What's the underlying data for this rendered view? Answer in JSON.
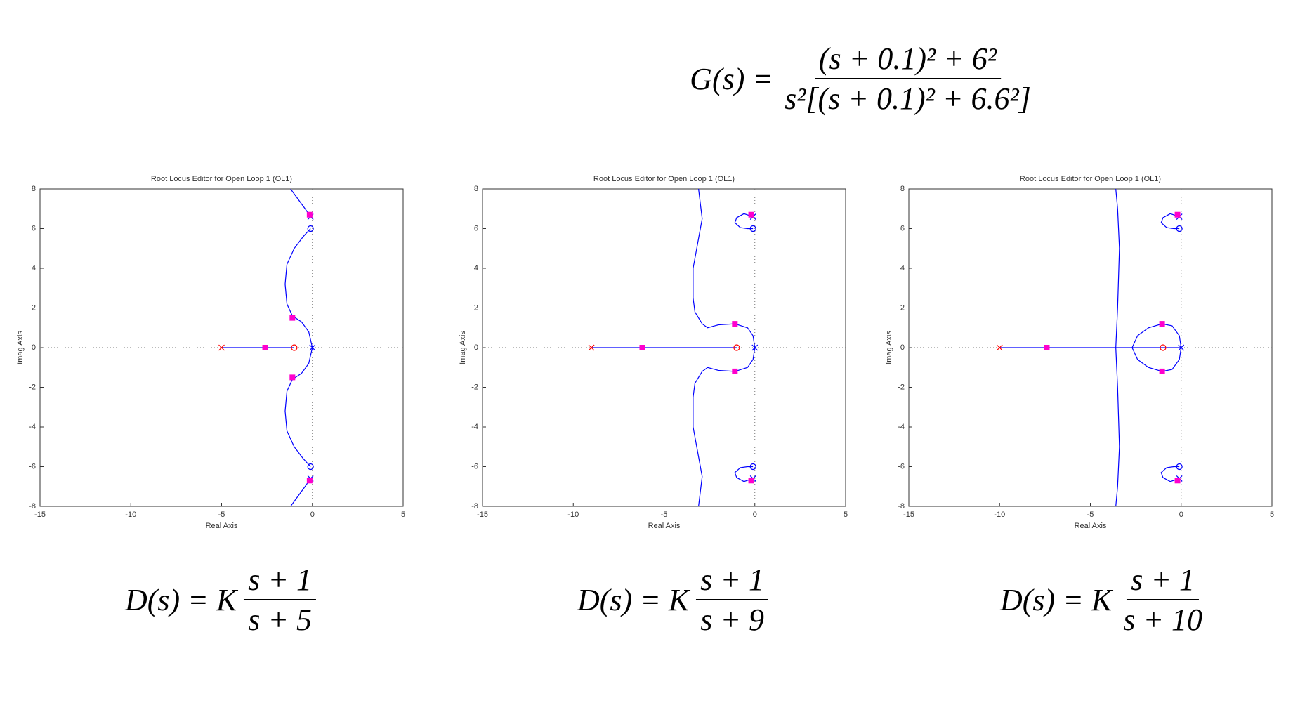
{
  "plant": {
    "lhs": "G(s) =",
    "numerator": "(s + 0.1)² + 6²",
    "denominator": "s²[(s + 0.1)² + 6.6²]"
  },
  "compensators": [
    {
      "lhs": "D(s) = K",
      "numerator": "s + 1",
      "denominator": "s + 5"
    },
    {
      "lhs": "D(s) = K",
      "numerator": "s + 1",
      "denominator": "s + 9"
    },
    {
      "lhs": "D(s) = K",
      "numerator": "s + 1",
      "denominator": "s + 10"
    }
  ],
  "chart_data": [
    {
      "type": "root-locus",
      "title": "Root Locus Editor for Open Loop 1 (OL1)",
      "xlabel": "Real Axis",
      "ylabel": "Imag Axis",
      "xlim": [
        -15,
        5
      ],
      "ylim": [
        -8,
        8
      ],
      "xticks": [
        -15,
        -10,
        -5,
        0,
        5
      ],
      "yticks": [
        -8,
        -6,
        -4,
        -2,
        0,
        2,
        4,
        6,
        8
      ],
      "origin_lines": true,
      "locus_color": "#0000ff",
      "plant_color": "#0000ff",
      "compensator_color": "#ff0000",
      "closed_loop_color": "#ff00cc",
      "branches": [
        {
          "x": [
            -5,
            -1
          ],
          "y": [
            0,
            0
          ]
        },
        {
          "x": [
            0,
            -0.2,
            -0.6,
            -1.1,
            -1.4,
            -1.5,
            -1.4,
            -1.0,
            -0.5,
            -0.1
          ],
          "y": [
            0,
            0.8,
            1.3,
            1.6,
            2.2,
            3.2,
            4.2,
            5.0,
            5.6,
            6.0
          ]
        },
        {
          "x": [
            0,
            -0.2,
            -0.6,
            -1.1,
            -1.4,
            -1.5,
            -1.4,
            -1.0,
            -0.5,
            -0.1
          ],
          "y": [
            0,
            -0.8,
            -1.3,
            -1.6,
            -2.2,
            -3.2,
            -4.2,
            -5.0,
            -5.6,
            -6.0
          ]
        },
        {
          "x": [
            -0.1,
            -0.4,
            -0.8,
            -1.2
          ],
          "y": [
            6.6,
            7.0,
            7.5,
            8.0
          ]
        },
        {
          "x": [
            -0.1,
            -0.4,
            -0.8,
            -1.2
          ],
          "y": [
            -6.6,
            -7.0,
            -7.5,
            -8.0
          ]
        }
      ],
      "plant_poles": {
        "x": [
          0,
          -0.1,
          -0.1
        ],
        "y": [
          0,
          6.6,
          -6.6
        ]
      },
      "plant_zeros": {
        "x": [
          -0.1,
          -0.1
        ],
        "y": [
          6,
          -6
        ]
      },
      "compensator_pole": {
        "x": -5,
        "y": 0
      },
      "compensator_zero": {
        "x": -1,
        "y": 0
      },
      "closed_loop_poles": {
        "x": [
          -0.15,
          -0.15,
          -1.1,
          -1.1,
          -2.6
        ],
        "y": [
          6.7,
          -6.7,
          1.5,
          -1.5,
          0
        ]
      }
    },
    {
      "type": "root-locus",
      "title": "Root Locus Editor for Open Loop 1 (OL1)",
      "xlabel": "Real Axis",
      "ylabel": "Imag Axis",
      "xlim": [
        -15,
        5
      ],
      "ylim": [
        -8,
        8
      ],
      "xticks": [
        -15,
        -10,
        -5,
        0,
        5
      ],
      "yticks": [
        -8,
        -6,
        -4,
        -2,
        0,
        2,
        4,
        6,
        8
      ],
      "origin_lines": true,
      "locus_color": "#0000ff",
      "plant_color": "#0000ff",
      "compensator_color": "#ff0000",
      "closed_loop_color": "#ff00cc",
      "branches": [
        {
          "x": [
            -9,
            -1
          ],
          "y": [
            0,
            0
          ]
        },
        {
          "x": [
            0,
            -0.1,
            -0.4,
            -1.1,
            -2.0,
            -2.6,
            -2.9,
            -3.3,
            -3.4,
            -3.4,
            -3.1,
            -2.9,
            -3.1
          ],
          "y": [
            0,
            0.6,
            1.0,
            1.2,
            1.15,
            1.0,
            1.2,
            1.8,
            2.5,
            4.0,
            5.5,
            6.5,
            8.0
          ]
        },
        {
          "x": [
            0,
            -0.1,
            -0.4,
            -1.1,
            -2.0,
            -2.6,
            -2.9,
            -3.3,
            -3.4,
            -3.4,
            -3.1,
            -2.9,
            -3.1
          ],
          "y": [
            0,
            -0.6,
            -1.0,
            -1.2,
            -1.15,
            -1.0,
            -1.2,
            -1.8,
            -2.5,
            -4.0,
            -5.5,
            -6.5,
            -8.0
          ]
        },
        {
          "x": [
            -0.1,
            -0.6,
            -1.0,
            -1.1,
            -0.8,
            -0.4,
            -0.1
          ],
          "y": [
            6.6,
            6.75,
            6.55,
            6.3,
            6.05,
            6.0,
            6.0
          ]
        },
        {
          "x": [
            -0.1,
            -0.6,
            -1.0,
            -1.1,
            -0.8,
            -0.4,
            -0.1
          ],
          "y": [
            -6.6,
            -6.75,
            -6.55,
            -6.3,
            -6.05,
            -6.0,
            -6.0
          ]
        }
      ],
      "plant_poles": {
        "x": [
          0,
          -0.1,
          -0.1
        ],
        "y": [
          0,
          6.6,
          -6.6
        ]
      },
      "plant_zeros": {
        "x": [
          -0.1,
          -0.1
        ],
        "y": [
          6,
          -6
        ]
      },
      "compensator_pole": {
        "x": -9,
        "y": 0
      },
      "compensator_zero": {
        "x": -1,
        "y": 0
      },
      "closed_loop_poles": {
        "x": [
          -0.2,
          -0.2,
          -1.1,
          -1.1,
          -6.2
        ],
        "y": [
          6.7,
          -6.7,
          1.2,
          -1.2,
          0
        ]
      }
    },
    {
      "type": "root-locus",
      "title": "Root Locus Editor for Open Loop 1 (OL1)",
      "xlabel": "Real Axis",
      "ylabel": "Imag Axis",
      "xlim": [
        -15,
        5
      ],
      "ylim": [
        -8,
        8
      ],
      "xticks": [
        -15,
        -10,
        -5,
        0,
        5
      ],
      "yticks": [
        -8,
        -6,
        -4,
        -2,
        0,
        2,
        4,
        6,
        8
      ],
      "origin_lines": true,
      "locus_color": "#0000ff",
      "plant_color": "#0000ff",
      "compensator_color": "#ff0000",
      "closed_loop_color": "#ff00cc",
      "branches": [
        {
          "x": [
            -10,
            0
          ],
          "y": [
            0,
            0
          ]
        },
        {
          "x": [
            0,
            -0.1,
            -0.5,
            -1.05,
            -1.8,
            -2.4,
            -2.7
          ],
          "y": [
            0,
            0.6,
            1.1,
            1.2,
            1.0,
            0.6,
            0
          ]
        },
        {
          "x": [
            0,
            -0.1,
            -0.5,
            -1.05,
            -1.8,
            -2.4,
            -2.7
          ],
          "y": [
            0,
            -0.6,
            -1.1,
            -1.2,
            -1.0,
            -0.6,
            0
          ]
        },
        {
          "x": [
            -3.6,
            -3.5,
            -3.4,
            -3.5,
            -3.6
          ],
          "y": [
            0,
            2,
            5,
            7,
            8
          ]
        },
        {
          "x": [
            -3.6,
            -3.5,
            -3.4,
            -3.5,
            -3.6
          ],
          "y": [
            0,
            -2,
            -5,
            -7,
            -8
          ]
        },
        {
          "x": [
            -0.1,
            -0.6,
            -1.0,
            -1.1,
            -0.8,
            -0.4,
            -0.1
          ],
          "y": [
            6.6,
            6.75,
            6.55,
            6.3,
            6.05,
            6.0,
            6.0
          ]
        },
        {
          "x": [
            -0.1,
            -0.6,
            -1.0,
            -1.1,
            -0.8,
            -0.4,
            -0.1
          ],
          "y": [
            -6.6,
            -6.75,
            -6.55,
            -6.3,
            -6.05,
            -6.0,
            -6.0
          ]
        }
      ],
      "plant_poles": {
        "x": [
          0,
          -0.1,
          -0.1
        ],
        "y": [
          0,
          6.6,
          -6.6
        ]
      },
      "plant_zeros": {
        "x": [
          -0.1,
          -0.1
        ],
        "y": [
          6,
          -6
        ]
      },
      "compensator_pole": {
        "x": -10,
        "y": 0
      },
      "compensator_zero": {
        "x": -1,
        "y": 0
      },
      "closed_loop_poles": {
        "x": [
          -0.2,
          -0.2,
          -1.05,
          -1.05,
          -7.4
        ],
        "y": [
          6.7,
          -6.7,
          1.2,
          -1.2,
          0
        ]
      }
    }
  ]
}
